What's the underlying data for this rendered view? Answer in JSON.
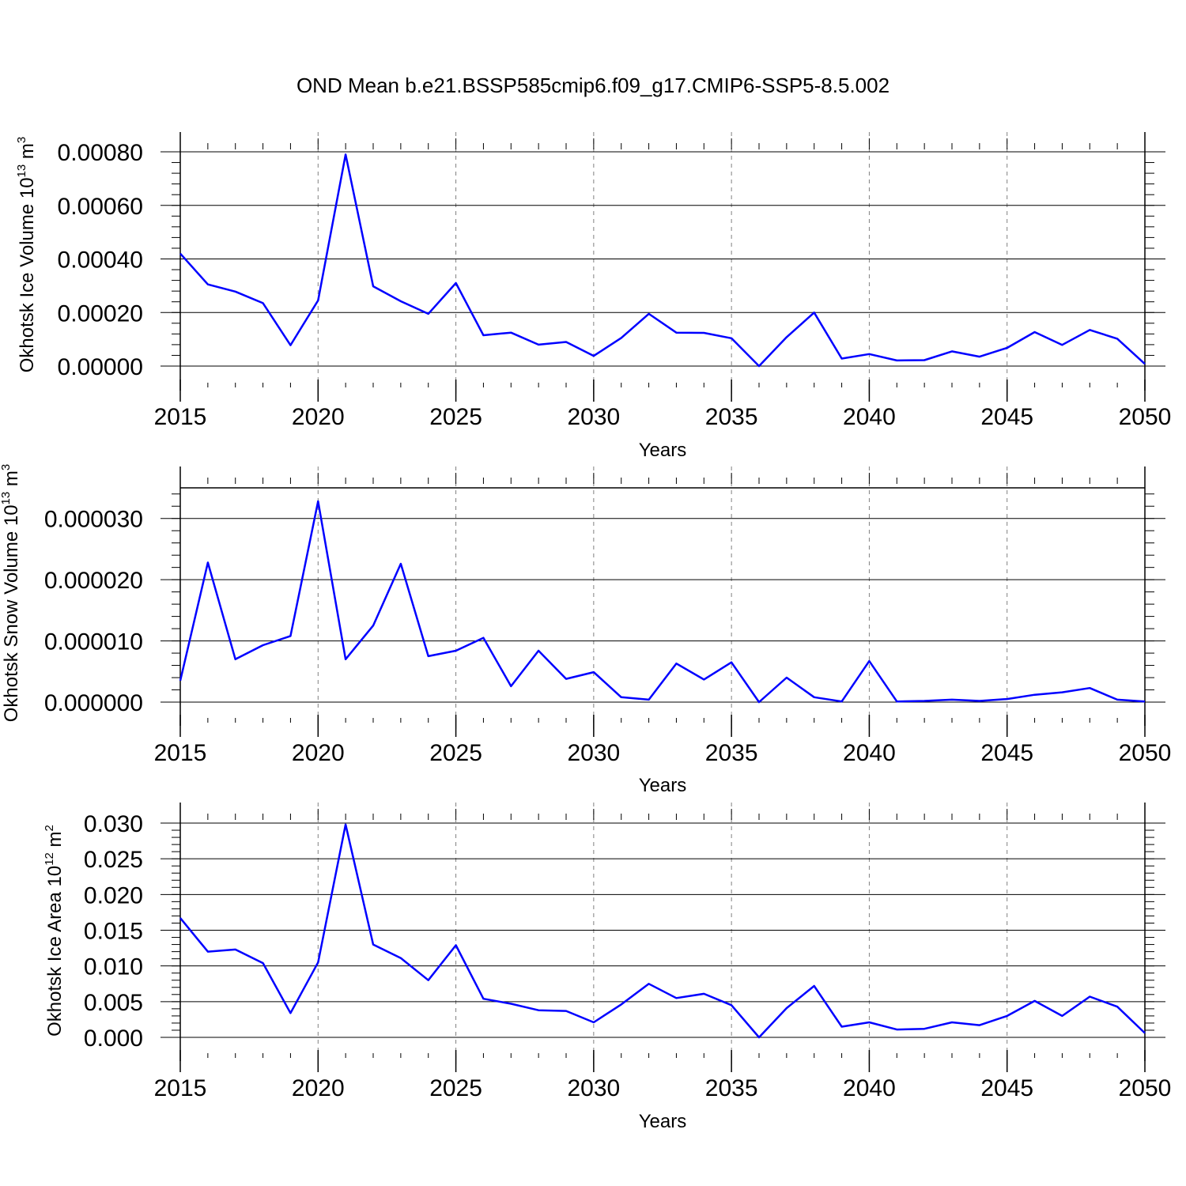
{
  "title": "OND Mean b.e21.BSSP585cmip6.f09_g17.CMIP6-SSP5-8.5.002",
  "colors": {
    "line": "#0000ff",
    "axis": "#000000",
    "grid": "#808080"
  },
  "chart_data": [
    {
      "type": "line",
      "xlabel": "Years",
      "ylabel": {
        "text": "Okhotsk Ice Volume 10",
        "exponent": "13",
        "unit": "m",
        "unit_exponent": "3"
      },
      "xlim": [
        2015,
        2050
      ],
      "ylim": [
        0,
        0.0008
      ],
      "yticks": [
        0,
        0.0002,
        0.0004,
        0.0006,
        0.0008
      ],
      "ytick_labels": [
        "0.00000",
        "0.00020",
        "0.00040",
        "0.00060",
        "0.00080"
      ],
      "xticks": [
        2015,
        2020,
        2025,
        2030,
        2035,
        2040,
        2045,
        2050
      ],
      "xtick_labels": [
        "2015",
        "2020",
        "2025",
        "2030",
        "2035",
        "2040",
        "2045",
        "2050"
      ],
      "vgrid": [
        2020,
        2025,
        2030,
        2035,
        2040,
        2045
      ],
      "x": [
        2015,
        2016,
        2017,
        2018,
        2019,
        2020,
        2021,
        2022,
        2023,
        2024,
        2025,
        2026,
        2027,
        2028,
        2029,
        2030,
        2031,
        2032,
        2033,
        2034,
        2035,
        2036,
        2037,
        2038,
        2039,
        2040,
        2041,
        2042,
        2043,
        2044,
        2045,
        2046,
        2047,
        2048,
        2049,
        2050
      ],
      "series": [
        {
          "values": [
            0.00042,
            0.000305,
            0.000278,
            0.000235,
            7.8e-05,
            0.000245,
            0.00079,
            0.000298,
            0.000242,
            0.000195,
            0.00031,
            0.000115,
            0.000125,
            8e-05,
            9e-05,
            3.8e-05,
            0.000105,
            0.000195,
            0.000125,
            0.000124,
            0.000104,
            0.0,
            0.000108,
            0.0002,
            2.8e-05,
            4.5e-05,
            2.1e-05,
            2.2e-05,
            5.5e-05,
            3.5e-05,
            6.8e-05,
            0.000127,
            7.9e-05,
            0.000135,
            0.000102,
            8e-06
          ]
        }
      ]
    },
    {
      "type": "line",
      "xlabel": "Years",
      "ylabel": {
        "text": "Okhotsk Snow Volume 10",
        "exponent": "13",
        "unit": "m",
        "unit_exponent": "3"
      },
      "xlim": [
        2015,
        2050
      ],
      "ylim": [
        0,
        3.5e-05
      ],
      "yticks": [
        0,
        1e-05,
        2e-05,
        3e-05
      ],
      "ytick_labels": [
        "0.000000",
        "0.000010",
        "0.000020",
        "0.000030"
      ],
      "xticks": [
        2015,
        2020,
        2025,
        2030,
        2035,
        2040,
        2045,
        2050
      ],
      "xtick_labels": [
        "2015",
        "2020",
        "2025",
        "2030",
        "2035",
        "2040",
        "2045",
        "2050"
      ],
      "vgrid": [
        2020,
        2025,
        2030,
        2035,
        2040,
        2045
      ],
      "x": [
        2015,
        2016,
        2017,
        2018,
        2019,
        2020,
        2021,
        2022,
        2023,
        2024,
        2025,
        2026,
        2027,
        2028,
        2029,
        2030,
        2031,
        2032,
        2033,
        2034,
        2035,
        2036,
        2037,
        2038,
        2039,
        2040,
        2041,
        2042,
        2043,
        2044,
        2045,
        2046,
        2047,
        2048,
        2049,
        2050
      ],
      "series": [
        {
          "values": [
            3.5e-06,
            2.28e-05,
            7e-06,
            9.3e-06,
            1.08e-05,
            3.28e-05,
            7e-06,
            1.25e-05,
            2.26e-05,
            7.5e-06,
            8.4e-06,
            1.05e-05,
            2.6e-06,
            8.4e-06,
            3.8e-06,
            4.9e-06,
            8e-07,
            4e-07,
            6.3e-06,
            3.7e-06,
            6.5e-06,
            0.0,
            4e-06,
            8e-07,
            1e-07,
            6.7e-06,
            1e-07,
            2e-07,
            4e-07,
            2e-07,
            5e-07,
            1.2e-06,
            1.6e-06,
            2.3e-06,
            4e-07,
            1e-07
          ]
        }
      ]
    },
    {
      "type": "line",
      "xlabel": "Years",
      "ylabel": {
        "text": "Okhotsk Ice Area 10",
        "exponent": "12",
        "unit": "m",
        "unit_exponent": "2"
      },
      "xlim": [
        2015,
        2050
      ],
      "ylim": [
        0,
        0.03
      ],
      "yticks": [
        0,
        0.005,
        0.01,
        0.015,
        0.02,
        0.025,
        0.03
      ],
      "ytick_labels": [
        "0.000",
        "0.005",
        "0.010",
        "0.015",
        "0.020",
        "0.025",
        "0.030"
      ],
      "xticks": [
        2015,
        2020,
        2025,
        2030,
        2035,
        2040,
        2045,
        2050
      ],
      "xtick_labels": [
        "2015",
        "2020",
        "2025",
        "2030",
        "2035",
        "2040",
        "2045",
        "2050"
      ],
      "vgrid": [
        2020,
        2025,
        2030,
        2035,
        2040,
        2045
      ],
      "x": [
        2015,
        2016,
        2017,
        2018,
        2019,
        2020,
        2021,
        2022,
        2023,
        2024,
        2025,
        2026,
        2027,
        2028,
        2029,
        2030,
        2031,
        2032,
        2033,
        2034,
        2035,
        2036,
        2037,
        2038,
        2039,
        2040,
        2041,
        2042,
        2043,
        2044,
        2045,
        2046,
        2047,
        2048,
        2049,
        2050
      ],
      "series": [
        {
          "values": [
            0.0167,
            0.012,
            0.0123,
            0.0104,
            0.0034,
            0.0105,
            0.0298,
            0.013,
            0.0111,
            0.008,
            0.0129,
            0.0054,
            0.0047,
            0.0038,
            0.0037,
            0.0021,
            0.0046,
            0.0075,
            0.0055,
            0.0061,
            0.0045,
            0.0,
            0.0041,
            0.0072,
            0.0015,
            0.0021,
            0.0011,
            0.0012,
            0.0021,
            0.0017,
            0.003,
            0.0051,
            0.003,
            0.0057,
            0.0043,
            0.0006
          ]
        }
      ]
    }
  ]
}
